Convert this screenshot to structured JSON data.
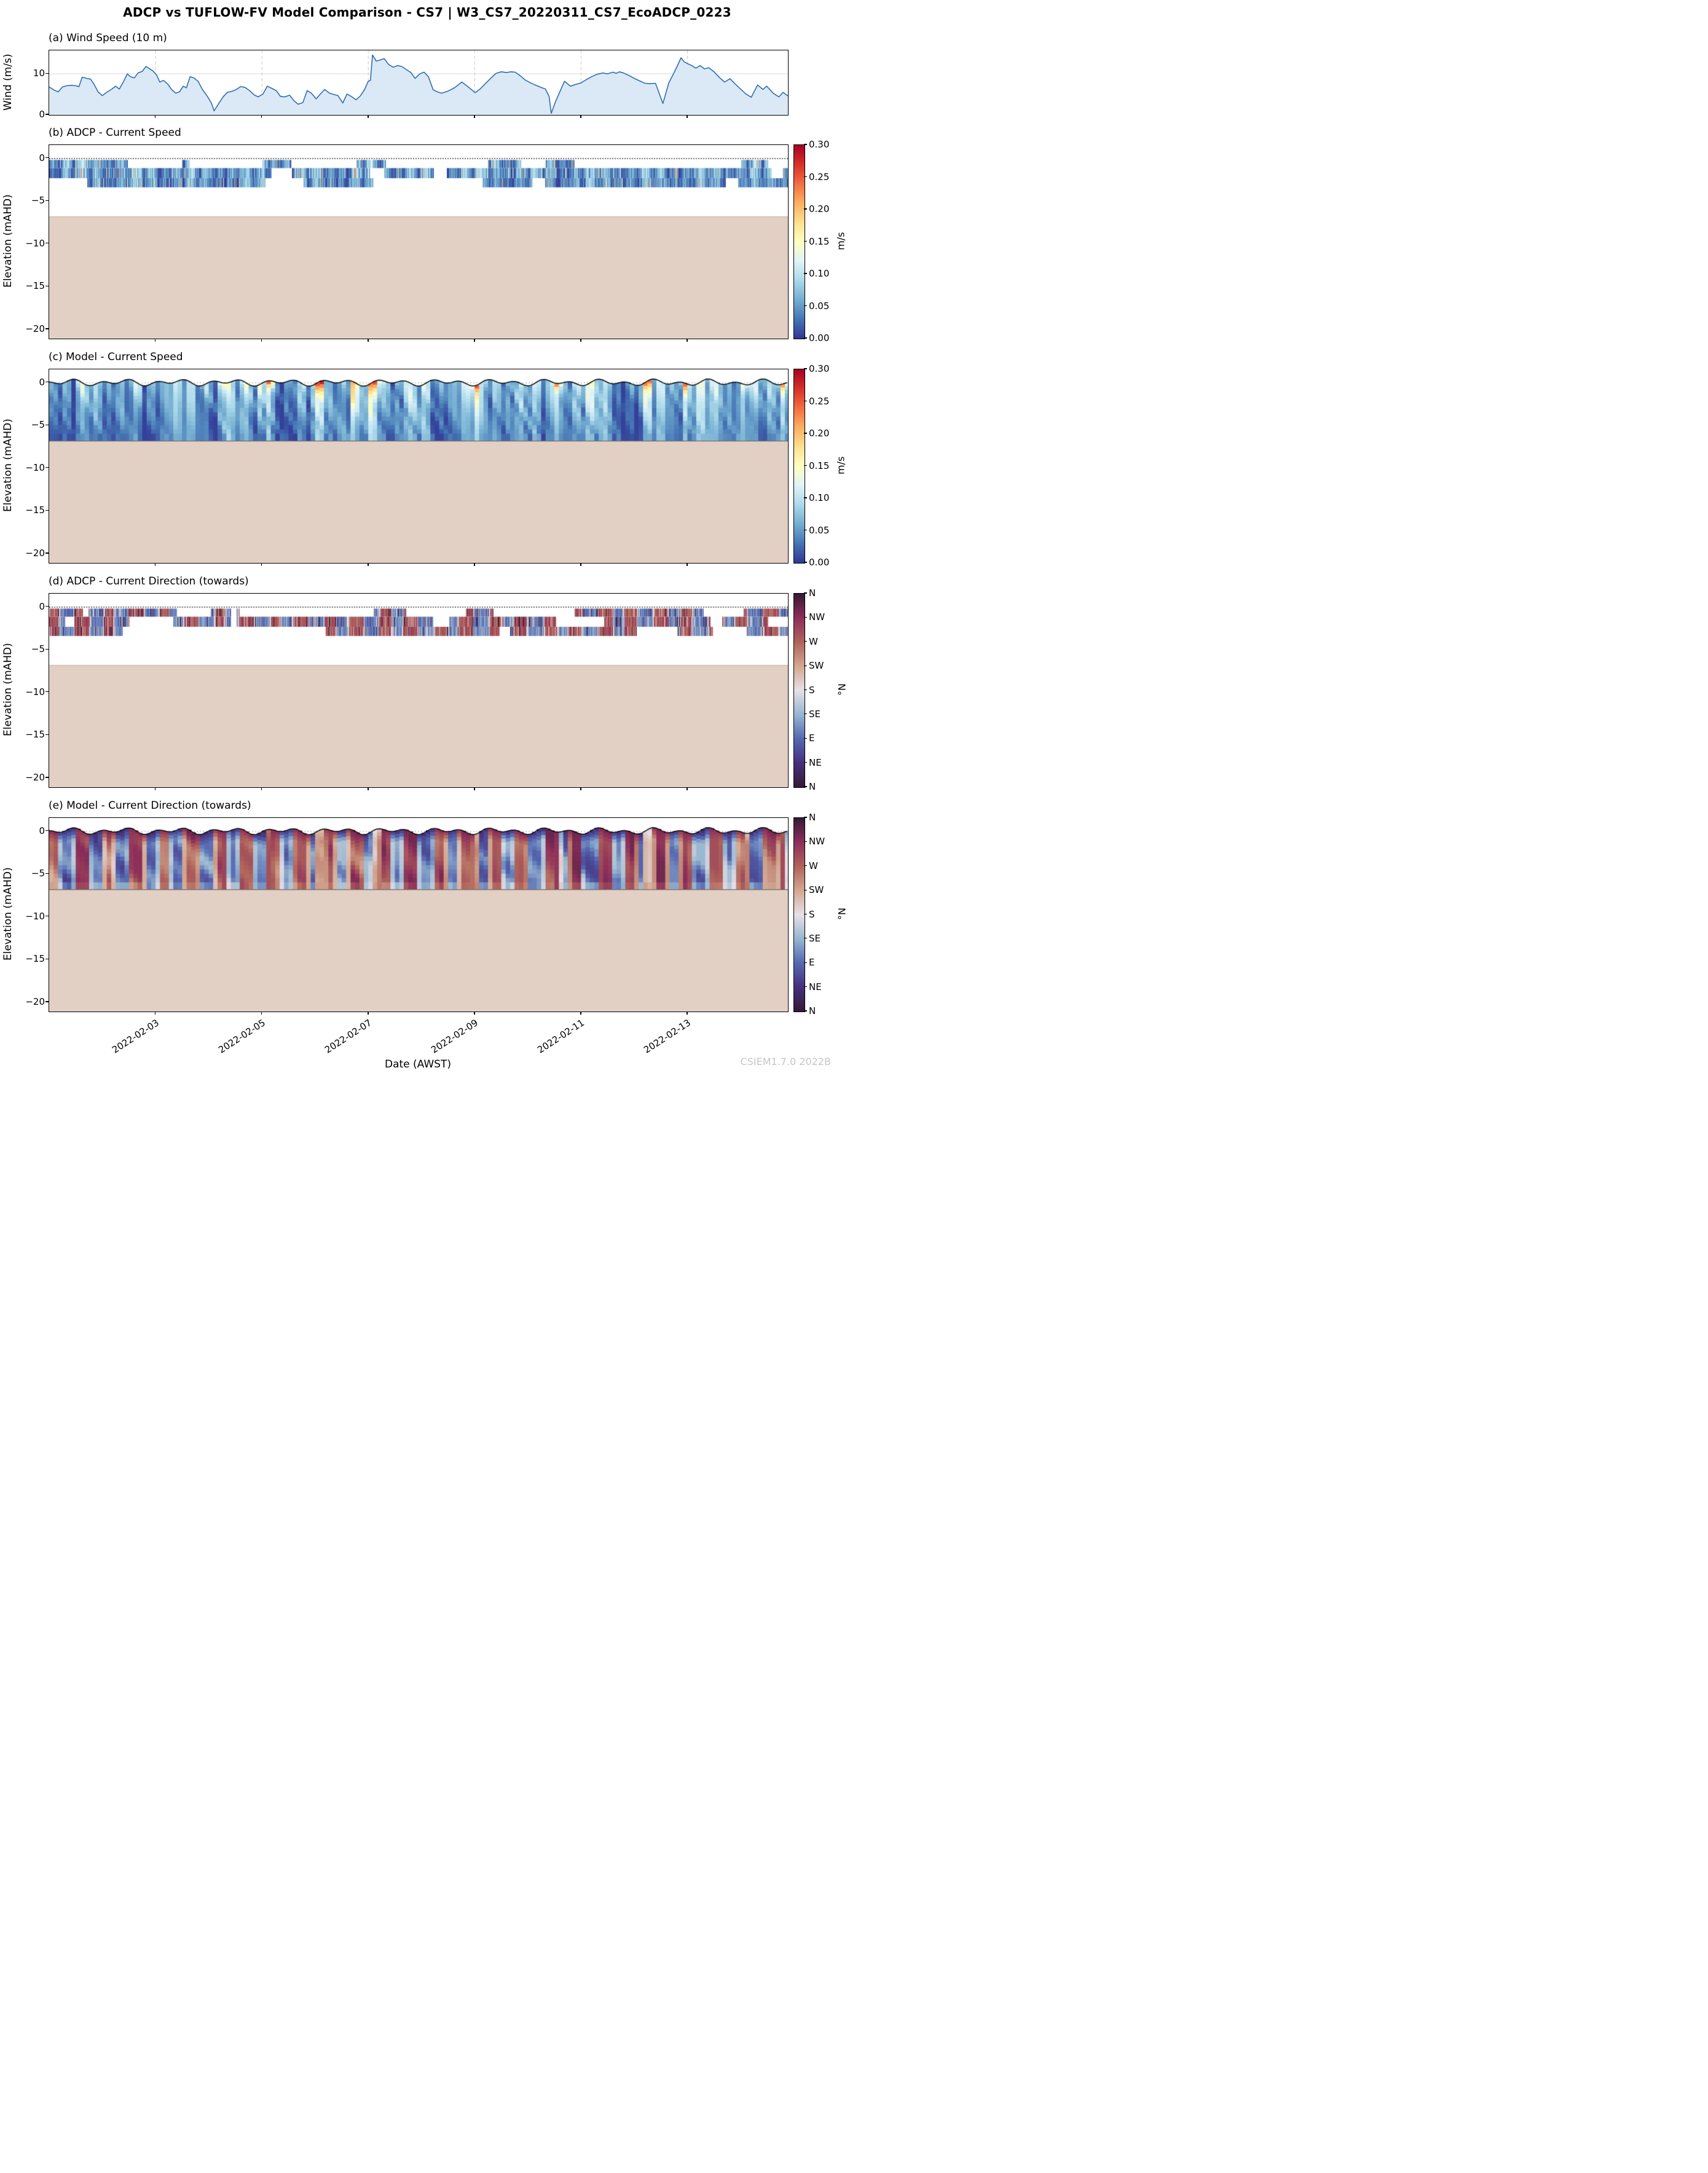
{
  "figure": {
    "title": "ADCP vs TUFLOW-FV Model Comparison - CS7 | W3_CS7_20220311_CS7_EcoADCP_0223",
    "watermark": "CSIEM1.7.0 2022B"
  },
  "axes": {
    "x": {
      "label": "Date (AWST)",
      "tick_labels": [
        "2022-02-03",
        "2022-02-05",
        "2022-02-07",
        "2022-02-09",
        "2022-02-11",
        "2022-02-13"
      ],
      "tick_days": [
        2,
        4,
        6,
        8,
        10,
        12
      ],
      "range_days": [
        0,
        13.89
      ],
      "start_date": "2022-02-01"
    },
    "wind_y": {
      "label": "Wind (m/s)",
      "tick_labels": [
        "10",
        "0"
      ],
      "tick_values": [
        10,
        0
      ],
      "range": [
        0,
        15.7
      ]
    },
    "elev_y": {
      "label": "Elevation (mAHD)",
      "tick_labels": [
        "0",
        "−5",
        "−10",
        "−15",
        "−20"
      ],
      "tick_values": [
        0,
        -5,
        -10,
        -15,
        -20
      ],
      "range": [
        1.55,
        -21.1
      ]
    }
  },
  "panels": [
    {
      "id": "a",
      "title": "(a) Wind Speed (10 m)"
    },
    {
      "id": "b",
      "title": "(b) ADCP - Current Speed",
      "colorbar": "speed"
    },
    {
      "id": "c",
      "title": "(c) Model - Current Speed",
      "colorbar": "speed"
    },
    {
      "id": "d",
      "title": "(d) ADCP - Current Direction (towards)",
      "colorbar": "direction"
    },
    {
      "id": "e",
      "title": "(e) Model - Current Direction (towards)",
      "colorbar": "direction"
    }
  ],
  "colorbars": {
    "speed": {
      "unit": "m/s",
      "vmin": 0.0,
      "vmax": 0.3,
      "tick_labels": [
        "0.30",
        "0.25",
        "0.20",
        "0.15",
        "0.10",
        "0.05",
        "0.00"
      ],
      "stops": [
        [
          0,
          "#313695"
        ],
        [
          0.1,
          "#4575b4"
        ],
        [
          0.2,
          "#74add1"
        ],
        [
          0.3,
          "#abd9e9"
        ],
        [
          0.4,
          "#e0f3f8"
        ],
        [
          0.5,
          "#ffffbf"
        ],
        [
          0.6,
          "#fee090"
        ],
        [
          0.7,
          "#fdae61"
        ],
        [
          0.8,
          "#f46d43"
        ],
        [
          0.9,
          "#d73027"
        ],
        [
          1,
          "#a50026"
        ]
      ]
    },
    "direction": {
      "unit": "°N",
      "vmin": 0,
      "vmax": 360,
      "tick_labels": [
        "N",
        "NW",
        "W",
        "SW",
        "S",
        "SE",
        "E",
        "NE",
        "N"
      ],
      "stops": [
        [
          0,
          "#341a35"
        ],
        [
          0.125,
          "#45307c"
        ],
        [
          0.25,
          "#5568b1"
        ],
        [
          0.375,
          "#96b6d0"
        ],
        [
          0.5,
          "#e8dfe6"
        ],
        [
          0.625,
          "#d2a791"
        ],
        [
          0.75,
          "#b0635a"
        ],
        [
          0.875,
          "#8c2e5a"
        ],
        [
          1,
          "#341a35"
        ]
      ]
    }
  },
  "colors": {
    "wind_line": "#2e6fb3",
    "wind_fill": "#dbe8f6",
    "sediment": "#e2d0c4",
    "bed_line": "#55514a",
    "bed_line_soft": "#c9b2a4",
    "grid_dashed": "#c9c9c9",
    "grid_solid": "#e0e0e0",
    "zero_line_dark": "#222222",
    "zero_line_light": "#9a9a9a",
    "surface_line": "#000000",
    "watermark": "#c6c6c6"
  },
  "chart_data": [
    {
      "type": "line",
      "title": "(a) Wind Speed (10 m)",
      "ylabel": "Wind (m/s)",
      "x_unit": "days since 2022-02-01 00:00 AWST",
      "ylim": [
        0,
        15.7
      ],
      "grid": "vertical dashed at 2-day ticks, horizontal at 10",
      "points": [
        [
          0.0,
          6.8
        ],
        [
          0.1,
          6.0
        ],
        [
          0.17,
          5.6
        ],
        [
          0.25,
          6.8
        ],
        [
          0.33,
          7.1
        ],
        [
          0.42,
          7.2
        ],
        [
          0.5,
          7.1
        ],
        [
          0.56,
          6.9
        ],
        [
          0.62,
          9.2
        ],
        [
          0.7,
          8.9
        ],
        [
          0.78,
          8.7
        ],
        [
          0.85,
          7.3
        ],
        [
          0.92,
          5.6
        ],
        [
          1.0,
          4.7
        ],
        [
          1.08,
          5.5
        ],
        [
          1.17,
          6.2
        ],
        [
          1.25,
          7.0
        ],
        [
          1.32,
          6.3
        ],
        [
          1.4,
          8.2
        ],
        [
          1.47,
          10.0
        ],
        [
          1.53,
          9.3
        ],
        [
          1.6,
          9.0
        ],
        [
          1.67,
          10.2
        ],
        [
          1.75,
          10.6
        ],
        [
          1.82,
          11.8
        ],
        [
          1.88,
          11.3
        ],
        [
          1.95,
          10.7
        ],
        [
          2.02,
          9.7
        ],
        [
          2.08,
          8.0
        ],
        [
          2.15,
          8.4
        ],
        [
          2.23,
          7.5
        ],
        [
          2.3,
          6.2
        ],
        [
          2.38,
          5.3
        ],
        [
          2.45,
          5.6
        ],
        [
          2.52,
          7.0
        ],
        [
          2.58,
          6.6
        ],
        [
          2.65,
          9.3
        ],
        [
          2.72,
          9.0
        ],
        [
          2.8,
          8.2
        ],
        [
          2.88,
          6.2
        ],
        [
          2.97,
          4.6
        ],
        [
          3.05,
          2.9
        ],
        [
          3.1,
          1.0
        ],
        [
          3.18,
          2.6
        ],
        [
          3.27,
          4.4
        ],
        [
          3.35,
          5.5
        ],
        [
          3.43,
          5.7
        ],
        [
          3.52,
          6.2
        ],
        [
          3.6,
          6.9
        ],
        [
          3.68,
          6.7
        ],
        [
          3.77,
          5.9
        ],
        [
          3.85,
          4.9
        ],
        [
          3.93,
          4.4
        ],
        [
          4.02,
          5.1
        ],
        [
          4.1,
          7.0
        ],
        [
          4.18,
          6.5
        ],
        [
          4.27,
          5.9
        ],
        [
          4.35,
          4.5
        ],
        [
          4.43,
          4.4
        ],
        [
          4.52,
          4.8
        ],
        [
          4.6,
          3.5
        ],
        [
          4.68,
          2.6
        ],
        [
          4.77,
          3.0
        ],
        [
          4.85,
          5.9
        ],
        [
          4.93,
          5.3
        ],
        [
          5.02,
          3.9
        ],
        [
          5.1,
          5.1
        ],
        [
          5.18,
          6.2
        ],
        [
          5.27,
          5.3
        ],
        [
          5.35,
          5.0
        ],
        [
          5.43,
          4.7
        ],
        [
          5.52,
          2.9
        ],
        [
          5.6,
          5.1
        ],
        [
          5.68,
          4.5
        ],
        [
          5.77,
          3.7
        ],
        [
          5.85,
          4.6
        ],
        [
          5.93,
          6.2
        ],
        [
          6.0,
          8.2
        ],
        [
          6.04,
          8.4
        ],
        [
          6.08,
          14.6
        ],
        [
          6.15,
          13.1
        ],
        [
          6.23,
          13.4
        ],
        [
          6.3,
          13.7
        ],
        [
          6.38,
          12.3
        ],
        [
          6.47,
          11.6
        ],
        [
          6.55,
          12.0
        ],
        [
          6.63,
          11.8
        ],
        [
          6.72,
          11.0
        ],
        [
          6.8,
          10.3
        ],
        [
          6.88,
          8.9
        ],
        [
          6.97,
          10.0
        ],
        [
          7.05,
          10.4
        ],
        [
          7.13,
          9.3
        ],
        [
          7.22,
          6.1
        ],
        [
          7.3,
          5.6
        ],
        [
          7.38,
          5.3
        ],
        [
          7.5,
          5.8
        ],
        [
          7.62,
          6.6
        ],
        [
          7.76,
          8.0
        ],
        [
          7.88,
          6.8
        ],
        [
          8.01,
          5.4
        ],
        [
          8.1,
          6.3
        ],
        [
          8.2,
          7.6
        ],
        [
          8.3,
          8.9
        ],
        [
          8.4,
          10.1
        ],
        [
          8.5,
          10.5
        ],
        [
          8.6,
          10.3
        ],
        [
          8.68,
          10.5
        ],
        [
          8.76,
          10.4
        ],
        [
          8.85,
          9.6
        ],
        [
          8.95,
          8.5
        ],
        [
          9.05,
          7.8
        ],
        [
          9.15,
          7.2
        ],
        [
          9.25,
          6.7
        ],
        [
          9.33,
          6.3
        ],
        [
          9.4,
          4.5
        ],
        [
          9.44,
          0.4
        ],
        [
          9.52,
          3.2
        ],
        [
          9.6,
          5.6
        ],
        [
          9.69,
          8.2
        ],
        [
          9.8,
          7.0
        ],
        [
          9.9,
          7.4
        ],
        [
          10.0,
          7.8
        ],
        [
          10.1,
          8.6
        ],
        [
          10.2,
          9.3
        ],
        [
          10.3,
          9.9
        ],
        [
          10.41,
          10.2
        ],
        [
          10.5,
          10.0
        ],
        [
          10.6,
          10.4
        ],
        [
          10.66,
          10.1
        ],
        [
          10.72,
          10.5
        ],
        [
          10.8,
          10.2
        ],
        [
          10.9,
          9.6
        ],
        [
          11.0,
          8.9
        ],
        [
          11.1,
          8.3
        ],
        [
          11.2,
          7.7
        ],
        [
          11.3,
          7.6
        ],
        [
          11.4,
          7.7
        ],
        [
          11.54,
          2.8
        ],
        [
          11.65,
          7.8
        ],
        [
          11.75,
          10.3
        ],
        [
          11.82,
          12.2
        ],
        [
          11.88,
          13.9
        ],
        [
          11.94,
          12.9
        ],
        [
          12.0,
          12.5
        ],
        [
          12.08,
          12.0
        ],
        [
          12.16,
          11.4
        ],
        [
          12.24,
          12.0
        ],
        [
          12.32,
          11.2
        ],
        [
          12.4,
          11.5
        ],
        [
          12.5,
          10.5
        ],
        [
          12.61,
          9.0
        ],
        [
          12.7,
          8.0
        ],
        [
          12.8,
          8.8
        ],
        [
          12.9,
          7.5
        ],
        [
          13.0,
          6.3
        ],
        [
          13.1,
          5.1
        ],
        [
          13.2,
          4.3
        ],
        [
          13.32,
          7.3
        ],
        [
          13.42,
          6.2
        ],
        [
          13.49,
          7.0
        ],
        [
          13.62,
          5.2
        ],
        [
          13.72,
          4.4
        ],
        [
          13.8,
          5.5
        ],
        [
          13.88,
          4.7
        ],
        [
          13.97,
          4.9
        ]
      ]
    },
    {
      "type": "heatmap",
      "title": "(b) ADCP - Current Speed",
      "ylabel": "Elevation (mAHD)",
      "units": "m/s",
      "vmin": 0.0,
      "vmax": 0.3,
      "colormap": "RdYlBu_r",
      "x_range_days": [
        0,
        13.89
      ],
      "ylim": [
        1.55,
        -21.1
      ],
      "data_band_elevation": [
        -0.2,
        -3.4
      ],
      "rows_elevation": [
        [
          -0.2,
          -1.15
        ],
        [
          -1.15,
          -2.33
        ],
        [
          -2.33,
          -3.4
        ]
      ],
      "bed_elevation": -6.8,
      "summary": "Three ~1.1 m ADCP bins as fine vertical stripes; speeds mostly 0.00-0.12 m/s (blues), sporadic 0.13-0.25 m/s (pale yellow/orange); top bin intermittent, white gaps where no data; tan sediment below -6.8 mAHD."
    },
    {
      "type": "heatmap",
      "title": "(c) Model - Current Speed",
      "ylabel": "Elevation (mAHD)",
      "units": "m/s",
      "vmin": 0.0,
      "vmax": 0.3,
      "colormap": "RdYlBu_r",
      "x_range_days": [
        0,
        13.89
      ],
      "ylim": [
        1.55,
        -21.1
      ],
      "surface_elevation_range": [
        -0.45,
        0.45
      ],
      "bed_elevation": -6.8,
      "summary": "Full water column from tidally oscillating free surface (black line, ~±0.45 m about 0, mixed tide) to bed at -6.8 mAHD; ~2 h columns with sigma-layer banding; speeds 0.02-0.15 m/s (blues with light streaks); storm pulses reach 0.25-0.30 m/s (orange/dark red) near the surface and in narrow full-depth streaks."
    },
    {
      "type": "heatmap",
      "title": "(d) ADCP - Current Direction (towards)",
      "ylabel": "Elevation (mAHD)",
      "units": "°N",
      "vmin": 0,
      "vmax": 360,
      "colormap": "twilight_shifted (cyclic N-E-S-W-N)",
      "x_range_days": [
        0,
        13.89
      ],
      "ylim": [
        1.55,
        -21.1
      ],
      "data_band_elevation": [
        -0.2,
        -3.4
      ],
      "rows_elevation": [
        [
          -0.2,
          -1.15
        ],
        [
          -1.15,
          -2.33
        ],
        [
          -2.33,
          -3.4
        ]
      ],
      "bed_elevation": -6.8,
      "summary": "Same three bins as (b); bimodal tidal directions alternating between E-SE (blues) and W-NW (reds/maroons) with occasional near-N dark purple and light S stripes."
    },
    {
      "type": "heatmap",
      "title": "(e) Model - Current Direction (towards)",
      "ylabel": "Elevation (mAHD)",
      "units": "°N",
      "vmin": 0,
      "vmax": 360,
      "colormap": "twilight_shifted (cyclic N-E-S-W-N)",
      "x_range_days": [
        0,
        13.89
      ],
      "ylim": [
        1.55,
        -21.1
      ],
      "xlabel": "Date (AWST)",
      "surface_elevation_range": [
        -0.45,
        0.45
      ],
      "bed_elevation": -6.8,
      "summary": "Full-column modelled direction: ebb E-SE (blue) and flood W-NW (red/maroon) bands tilting with depth, dark purple near-surface N flows, pale S slack streaks; sediment below -6.8 mAHD."
    }
  ],
  "render_params": {
    "tide": {
      "m2_period_days": 0.5175,
      "d1_period_days": 1.0035,
      "m2_amp_m": 0.23,
      "d1_amp_m": 0.19,
      "m2_phase": 2.0,
      "d1_phase": -0.8,
      "u_d1_ratio": 0.45
    },
    "storm_events": [
      [
        3.3,
        0.06,
        0.2
      ],
      [
        4.15,
        0.05,
        0.24
      ],
      [
        5.1,
        0.05,
        0.3
      ],
      [
        6.15,
        0.08,
        0.16
      ],
      [
        8.0,
        0.05,
        0.22
      ],
      [
        9.55,
        0.05,
        0.26
      ],
      [
        11.25,
        0.05,
        0.24
      ],
      [
        11.95,
        0.06,
        0.18
      ],
      [
        13.1,
        0.04,
        0.22
      ],
      [
        13.8,
        0.05,
        0.3
      ]
    ],
    "seeds": {
      "adcp_speed": 7,
      "adcp_dir": 19,
      "model_speed": 11,
      "model_dir": 29
    }
  }
}
